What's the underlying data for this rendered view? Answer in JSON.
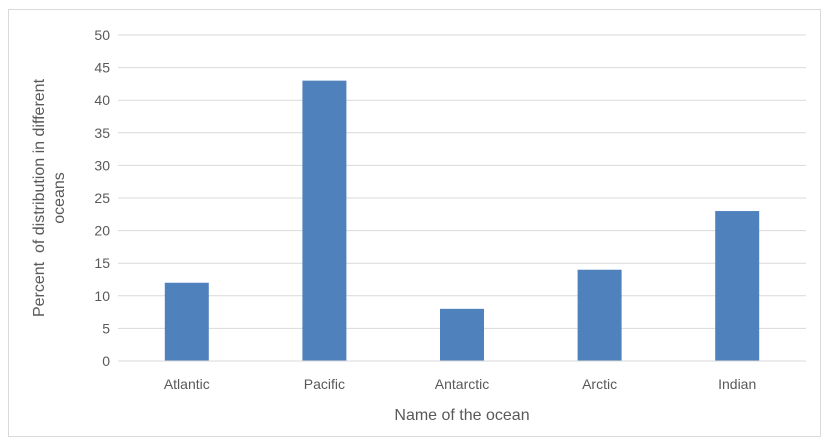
{
  "chart_data": {
    "type": "bar",
    "categories": [
      "Atlantic",
      "Pacific",
      "Antarctic",
      "Arctic",
      "Indian"
    ],
    "values": [
      12,
      43,
      8,
      14,
      23
    ],
    "xlabel": "Name of the ocean",
    "ylabel": [
      "Percent  of distribution in different",
      "oceans"
    ],
    "ylim": [
      0,
      50
    ],
    "yticks": [
      "0",
      "5",
      "10",
      "15",
      "20",
      "25",
      "30",
      "35",
      "40",
      "45",
      "50"
    ],
    "bar_color": "#4f81bd",
    "grid": true,
    "legend": "none"
  }
}
